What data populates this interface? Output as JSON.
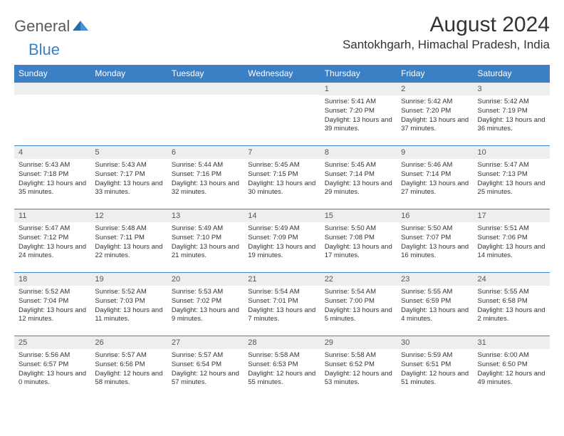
{
  "brand": {
    "part1": "General",
    "part2": "Blue"
  },
  "title": "August 2024",
  "location": "Santokhgarh, Himachal Pradesh, India",
  "colors": {
    "accent": "#3b7fc4",
    "daynum_bg": "#eceeef",
    "text": "#333333",
    "logo_gray": "#5a5a5a"
  },
  "weekdays": [
    "Sunday",
    "Monday",
    "Tuesday",
    "Wednesday",
    "Thursday",
    "Friday",
    "Saturday"
  ],
  "weeks": [
    [
      null,
      null,
      null,
      null,
      {
        "n": "1",
        "sunrise": "5:41 AM",
        "sunset": "7:20 PM",
        "daylight": "13 hours and 39 minutes."
      },
      {
        "n": "2",
        "sunrise": "5:42 AM",
        "sunset": "7:20 PM",
        "daylight": "13 hours and 37 minutes."
      },
      {
        "n": "3",
        "sunrise": "5:42 AM",
        "sunset": "7:19 PM",
        "daylight": "13 hours and 36 minutes."
      }
    ],
    [
      {
        "n": "4",
        "sunrise": "5:43 AM",
        "sunset": "7:18 PM",
        "daylight": "13 hours and 35 minutes."
      },
      {
        "n": "5",
        "sunrise": "5:43 AM",
        "sunset": "7:17 PM",
        "daylight": "13 hours and 33 minutes."
      },
      {
        "n": "6",
        "sunrise": "5:44 AM",
        "sunset": "7:16 PM",
        "daylight": "13 hours and 32 minutes."
      },
      {
        "n": "7",
        "sunrise": "5:45 AM",
        "sunset": "7:15 PM",
        "daylight": "13 hours and 30 minutes."
      },
      {
        "n": "8",
        "sunrise": "5:45 AM",
        "sunset": "7:14 PM",
        "daylight": "13 hours and 29 minutes."
      },
      {
        "n": "9",
        "sunrise": "5:46 AM",
        "sunset": "7:14 PM",
        "daylight": "13 hours and 27 minutes."
      },
      {
        "n": "10",
        "sunrise": "5:47 AM",
        "sunset": "7:13 PM",
        "daylight": "13 hours and 25 minutes."
      }
    ],
    [
      {
        "n": "11",
        "sunrise": "5:47 AM",
        "sunset": "7:12 PM",
        "daylight": "13 hours and 24 minutes."
      },
      {
        "n": "12",
        "sunrise": "5:48 AM",
        "sunset": "7:11 PM",
        "daylight": "13 hours and 22 minutes."
      },
      {
        "n": "13",
        "sunrise": "5:49 AM",
        "sunset": "7:10 PM",
        "daylight": "13 hours and 21 minutes."
      },
      {
        "n": "14",
        "sunrise": "5:49 AM",
        "sunset": "7:09 PM",
        "daylight": "13 hours and 19 minutes."
      },
      {
        "n": "15",
        "sunrise": "5:50 AM",
        "sunset": "7:08 PM",
        "daylight": "13 hours and 17 minutes."
      },
      {
        "n": "16",
        "sunrise": "5:50 AM",
        "sunset": "7:07 PM",
        "daylight": "13 hours and 16 minutes."
      },
      {
        "n": "17",
        "sunrise": "5:51 AM",
        "sunset": "7:06 PM",
        "daylight": "13 hours and 14 minutes."
      }
    ],
    [
      {
        "n": "18",
        "sunrise": "5:52 AM",
        "sunset": "7:04 PM",
        "daylight": "13 hours and 12 minutes."
      },
      {
        "n": "19",
        "sunrise": "5:52 AM",
        "sunset": "7:03 PM",
        "daylight": "13 hours and 11 minutes."
      },
      {
        "n": "20",
        "sunrise": "5:53 AM",
        "sunset": "7:02 PM",
        "daylight": "13 hours and 9 minutes."
      },
      {
        "n": "21",
        "sunrise": "5:54 AM",
        "sunset": "7:01 PM",
        "daylight": "13 hours and 7 minutes."
      },
      {
        "n": "22",
        "sunrise": "5:54 AM",
        "sunset": "7:00 PM",
        "daylight": "13 hours and 5 minutes."
      },
      {
        "n": "23",
        "sunrise": "5:55 AM",
        "sunset": "6:59 PM",
        "daylight": "13 hours and 4 minutes."
      },
      {
        "n": "24",
        "sunrise": "5:55 AM",
        "sunset": "6:58 PM",
        "daylight": "13 hours and 2 minutes."
      }
    ],
    [
      {
        "n": "25",
        "sunrise": "5:56 AM",
        "sunset": "6:57 PM",
        "daylight": "13 hours and 0 minutes."
      },
      {
        "n": "26",
        "sunrise": "5:57 AM",
        "sunset": "6:56 PM",
        "daylight": "12 hours and 58 minutes."
      },
      {
        "n": "27",
        "sunrise": "5:57 AM",
        "sunset": "6:54 PM",
        "daylight": "12 hours and 57 minutes."
      },
      {
        "n": "28",
        "sunrise": "5:58 AM",
        "sunset": "6:53 PM",
        "daylight": "12 hours and 55 minutes."
      },
      {
        "n": "29",
        "sunrise": "5:58 AM",
        "sunset": "6:52 PM",
        "daylight": "12 hours and 53 minutes."
      },
      {
        "n": "30",
        "sunrise": "5:59 AM",
        "sunset": "6:51 PM",
        "daylight": "12 hours and 51 minutes."
      },
      {
        "n": "31",
        "sunrise": "6:00 AM",
        "sunset": "6:50 PM",
        "daylight": "12 hours and 49 minutes."
      }
    ]
  ],
  "labels": {
    "sunrise": "Sunrise: ",
    "sunset": "Sunset: ",
    "daylight": "Daylight: "
  }
}
